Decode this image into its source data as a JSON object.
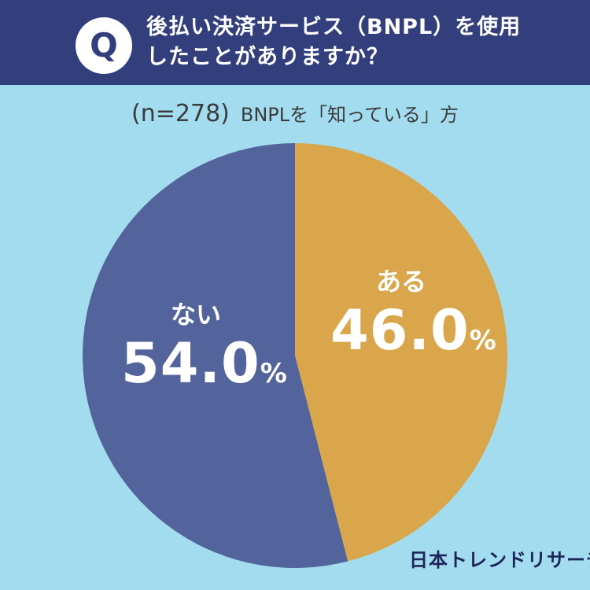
{
  "header": {
    "badge": "Q",
    "question_line1": "後払い決済サービス（BNPL）を使用",
    "question_line2": "したことがありますか？"
  },
  "subtitle": {
    "n": "(n=278)",
    "text": "BNPLを「知っている」方"
  },
  "colors": {
    "background": "#a3dcef",
    "header": "#333f7c",
    "aru": "#daa64c",
    "nai": "#53639c",
    "label_text": "#ffffff",
    "brand_text": "#1d2657"
  },
  "chart_data": {
    "type": "pie",
    "title": "後払い決済サービス（BNPL）を使用したことがありますか？",
    "subtitle": "(n=278) BNPLを「知っている」方",
    "start": "12 o'clock, clockwise",
    "slices": [
      {
        "label": "ある",
        "value": 46.0,
        "display": "46.0",
        "unit": "%",
        "color": "#daa64c"
      },
      {
        "label": "ない",
        "value": 54.0,
        "display": "54.0",
        "unit": "%",
        "color": "#53639c"
      }
    ]
  },
  "brand": "日本トレンドリサーチ"
}
